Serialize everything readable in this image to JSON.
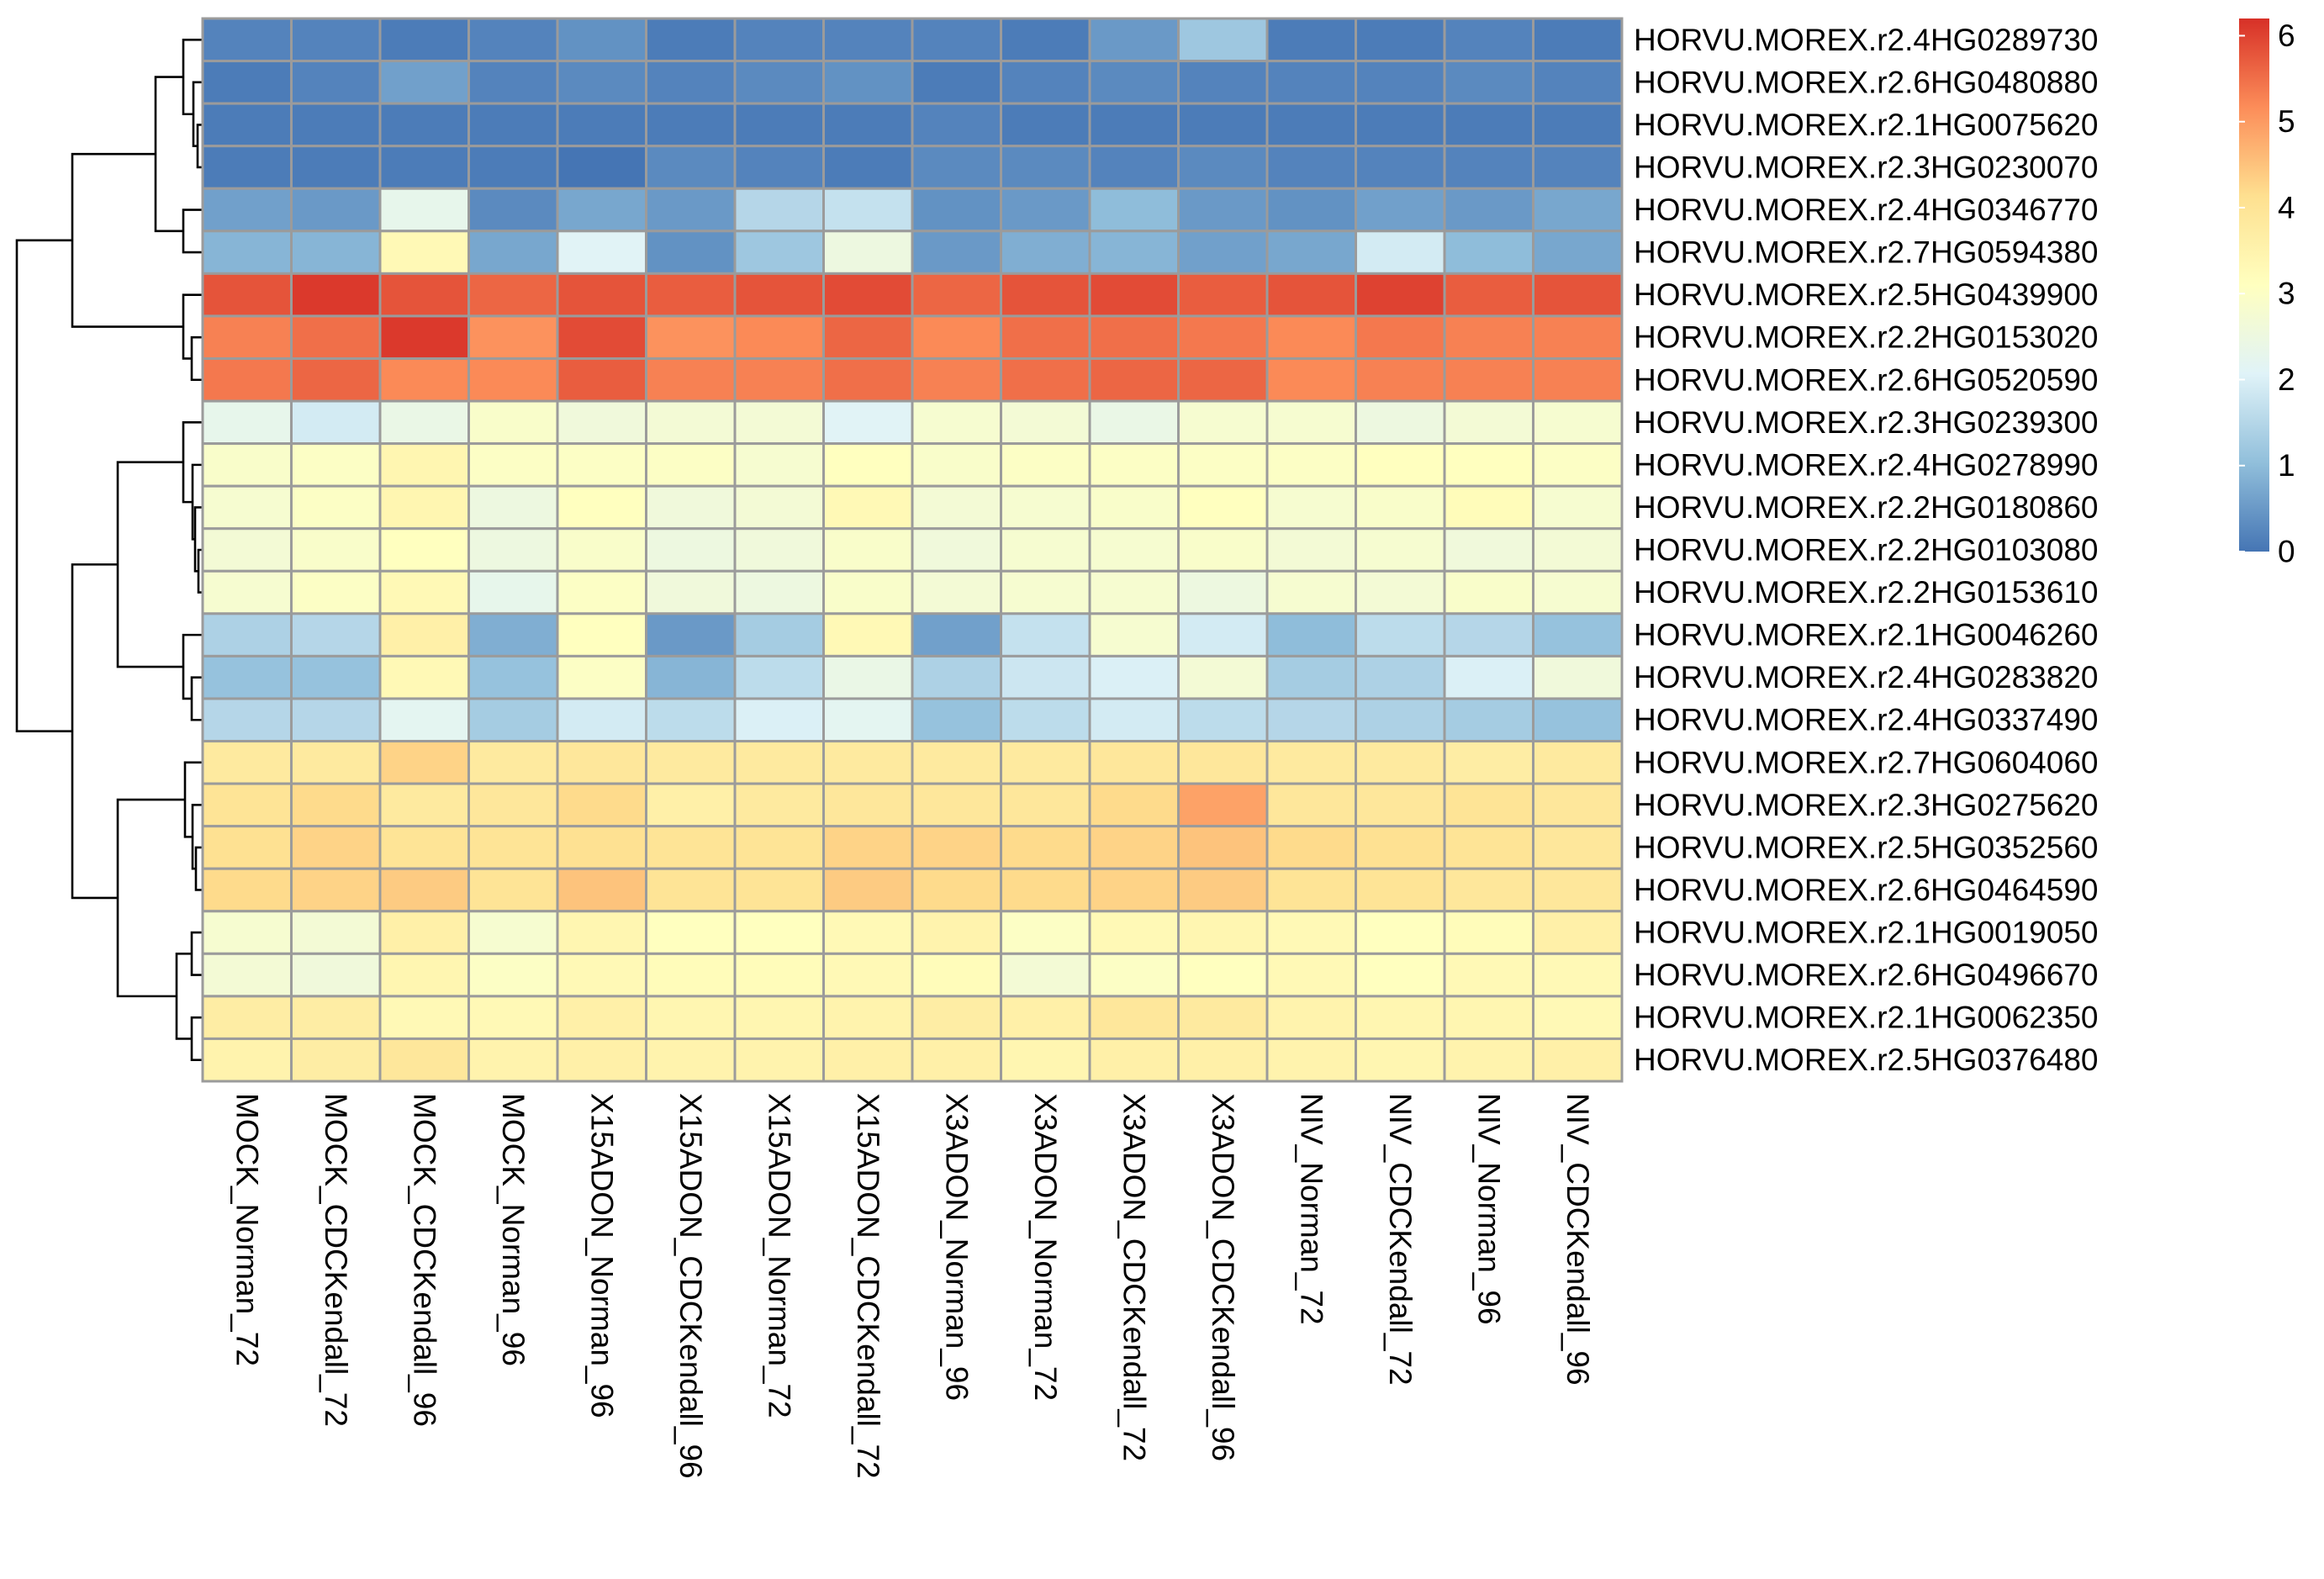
{
  "chart_data": {
    "type": "heatmap",
    "title": "",
    "xlabel": "",
    "ylabel": "",
    "columns": [
      "MOCK_Norman_72",
      "MOCK_CDCKendall_72",
      "MOCK_CDCKendall_96",
      "MOCK_Norman_96",
      "X15ADON_Norman_96",
      "X15ADON_CDCKendall_96",
      "X15ADON_Norman_72",
      "X15ADON_CDCKendall_72",
      "X3ADON_Norman_96",
      "X3ADON_Norman_72",
      "X3ADON_CDCKendall_72",
      "X3ADON_CDCKendall_96",
      "NIV_Norman_72",
      "NIV_CDCKendall_72",
      "NIV_Norman_96",
      "NIV_CDCKendall_96"
    ],
    "rows": [
      "HORVU.MOREX.r2.4HG0289730",
      "HORVU.MOREX.r2.6HG0480880",
      "HORVU.MOREX.r2.1HG0075620",
      "HORVU.MOREX.r2.3HG0230070",
      "HORVU.MOREX.r2.4HG0346770",
      "HORVU.MOREX.r2.7HG0594380",
      "HORVU.MOREX.r2.5HG0439900",
      "HORVU.MOREX.r2.2HG0153020",
      "HORVU.MOREX.r2.6HG0520590",
      "HORVU.MOREX.r2.3HG0239300",
      "HORVU.MOREX.r2.4HG0278990",
      "HORVU.MOREX.r2.2HG0180860",
      "HORVU.MOREX.r2.2HG0103080",
      "HORVU.MOREX.r2.2HG0153610",
      "HORVU.MOREX.r2.1HG0046260",
      "HORVU.MOREX.r2.4HG0283820",
      "HORVU.MOREX.r2.4HG0337490",
      "HORVU.MOREX.r2.7HG0604060",
      "HORVU.MOREX.r2.3HG0275620",
      "HORVU.MOREX.r2.5HG0352560",
      "HORVU.MOREX.r2.6HG0464590",
      "HORVU.MOREX.r2.1HG0019050",
      "HORVU.MOREX.r2.6HG0496670",
      "HORVU.MOREX.r2.1HG0062350",
      "HORVU.MOREX.r2.5HG0376480"
    ],
    "values": [
      [
        0.2,
        0.2,
        0.1,
        0.2,
        0.4,
        0.1,
        0.2,
        0.2,
        0.2,
        0.1,
        0.5,
        1.2,
        0.1,
        0.1,
        0.2,
        0.1
      ],
      [
        0.1,
        0.2,
        0.6,
        0.2,
        0.3,
        0.2,
        0.3,
        0.4,
        0.1,
        0.2,
        0.3,
        0.2,
        0.2,
        0.2,
        0.3,
        0.2
      ],
      [
        0.1,
        0.1,
        0.1,
        0.1,
        0.1,
        0.1,
        0.1,
        0.1,
        0.2,
        0.1,
        0.1,
        0.1,
        0.1,
        0.1,
        0.1,
        0.1
      ],
      [
        0.1,
        0.1,
        0.1,
        0.1,
        0.0,
        0.3,
        0.2,
        0.1,
        0.3,
        0.3,
        0.2,
        0.3,
        0.2,
        0.2,
        0.2,
        0.2
      ],
      [
        0.6,
        0.5,
        2.3,
        0.3,
        0.7,
        0.5,
        1.5,
        1.7,
        0.4,
        0.5,
        1.0,
        0.5,
        0.4,
        0.6,
        0.5,
        0.7
      ],
      [
        0.9,
        0.9,
        3.3,
        0.7,
        2.1,
        0.4,
        1.2,
        2.5,
        0.5,
        0.8,
        0.9,
        0.6,
        0.7,
        1.9,
        1.0,
        0.7
      ],
      [
        5.8,
        6.1,
        5.8,
        5.6,
        5.8,
        5.7,
        5.8,
        5.9,
        5.6,
        5.8,
        5.9,
        5.7,
        5.8,
        6.0,
        5.7,
        5.8
      ],
      [
        5.3,
        5.5,
        6.1,
        5.1,
        5.9,
        5.1,
        5.2,
        5.6,
        5.2,
        5.5,
        5.5,
        5.4,
        5.2,
        5.4,
        5.3,
        5.3
      ],
      [
        5.4,
        5.6,
        5.2,
        5.2,
        5.7,
        5.3,
        5.3,
        5.5,
        5.3,
        5.5,
        5.6,
        5.6,
        5.2,
        5.3,
        5.3,
        5.3
      ],
      [
        2.3,
        1.9,
        2.4,
        2.9,
        2.6,
        2.7,
        2.7,
        2.1,
        2.8,
        2.7,
        2.4,
        2.8,
        2.8,
        2.5,
        2.7,
        2.8
      ],
      [
        2.9,
        3.0,
        3.4,
        3.0,
        3.0,
        3.0,
        2.8,
        3.1,
        2.9,
        3.0,
        3.0,
        3.0,
        3.0,
        3.1,
        3.1,
        3.0
      ],
      [
        2.8,
        3.0,
        3.4,
        2.5,
        3.1,
        2.6,
        2.7,
        3.3,
        2.7,
        2.8,
        2.9,
        3.1,
        2.8,
        2.9,
        3.2,
        2.8
      ],
      [
        2.7,
        2.9,
        3.1,
        2.5,
        2.9,
        2.5,
        2.6,
        2.9,
        2.6,
        2.8,
        2.8,
        2.9,
        2.7,
        2.8,
        2.6,
        2.7
      ],
      [
        2.8,
        3.0,
        3.3,
        2.3,
        3.0,
        2.6,
        2.5,
        2.9,
        2.7,
        2.8,
        2.8,
        2.5,
        2.8,
        2.7,
        2.9,
        2.8
      ],
      [
        1.4,
        1.5,
        3.6,
        0.8,
        3.1,
        0.5,
        1.3,
        3.3,
        0.6,
        1.7,
        2.8,
        1.9,
        1.0,
        1.6,
        1.5,
        1.1
      ],
      [
        1.1,
        1.1,
        3.3,
        1.1,
        3.0,
        0.9,
        1.6,
        2.4,
        1.4,
        1.8,
        2.0,
        2.7,
        1.3,
        1.4,
        2.0,
        2.6
      ],
      [
        1.5,
        1.5,
        2.2,
        1.3,
        1.9,
        1.6,
        2.0,
        2.2,
        1.1,
        1.6,
        1.9,
        1.6,
        1.5,
        1.4,
        1.3,
        1.1
      ],
      [
        3.8,
        3.8,
        4.3,
        3.8,
        3.9,
        3.8,
        3.8,
        3.8,
        3.8,
        3.8,
        3.9,
        3.9,
        3.8,
        3.8,
        3.7,
        3.8
      ],
      [
        4.0,
        4.2,
        3.8,
        3.9,
        4.2,
        3.6,
        3.8,
        3.9,
        3.9,
        3.9,
        4.2,
        4.9,
        3.9,
        3.9,
        4.0,
        3.9
      ],
      [
        4.1,
        4.3,
        4.0,
        4.0,
        4.1,
        4.0,
        4.0,
        4.3,
        4.3,
        4.2,
        4.3,
        4.5,
        4.2,
        4.1,
        4.0,
        3.9
      ],
      [
        4.2,
        4.3,
        4.4,
        4.0,
        4.5,
        4.0,
        4.0,
        4.4,
        4.2,
        4.2,
        4.3,
        4.4,
        4.0,
        4.0,
        3.9,
        3.9
      ],
      [
        2.8,
        2.7,
        3.6,
        2.8,
        3.4,
        3.1,
        3.1,
        3.3,
        3.5,
        3.0,
        3.3,
        3.4,
        3.3,
        3.1,
        3.2,
        3.6
      ],
      [
        2.7,
        2.6,
        3.4,
        3.0,
        3.3,
        3.2,
        3.2,
        3.3,
        3.2,
        2.7,
        3.0,
        3.1,
        3.3,
        3.1,
        3.3,
        3.3
      ],
      [
        3.7,
        3.7,
        3.3,
        3.3,
        3.6,
        3.4,
        3.4,
        3.5,
        3.7,
        3.6,
        3.9,
        3.8,
        3.5,
        3.4,
        3.4,
        3.3
      ],
      [
        3.5,
        3.7,
        3.9,
        3.5,
        3.6,
        3.5,
        3.5,
        3.6,
        3.6,
        3.4,
        3.6,
        3.6,
        3.5,
        3.4,
        3.5,
        3.6
      ]
    ],
    "color_scale": {
      "min": 0,
      "max": 6.2,
      "stops": [
        "#4575b4",
        "#91bfdb",
        "#e0f3f8",
        "#ffffbf",
        "#fee090",
        "#fc8d59",
        "#d73027"
      ],
      "ticks": [
        0,
        1,
        2,
        3,
        4,
        5,
        6
      ]
    },
    "legend": "right",
    "cell_border": "#9b9b9b",
    "row_dendrogram": "left"
  }
}
